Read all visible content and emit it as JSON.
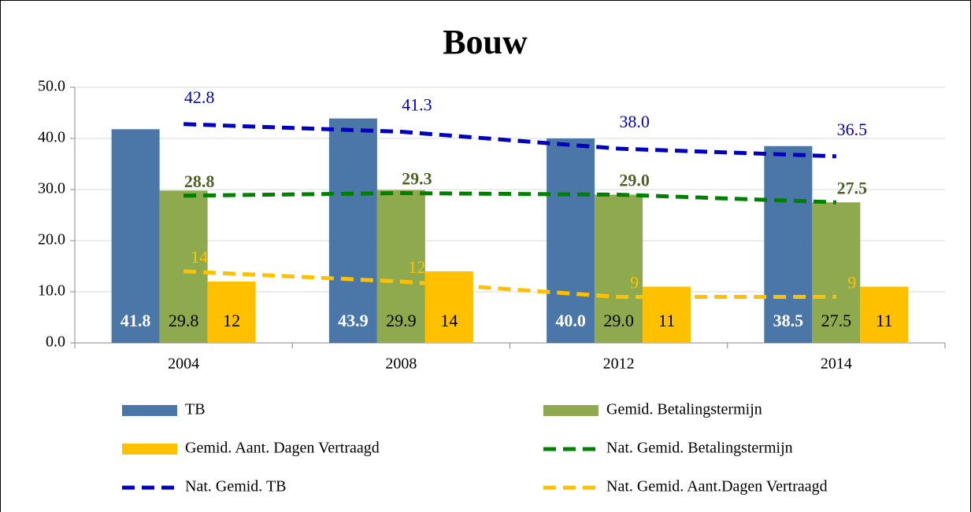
{
  "chart_data": {
    "type": "bar",
    "title": "Bouw",
    "categories": [
      "2004",
      "2008",
      "2012",
      "2014"
    ],
    "ylim": [
      0,
      50
    ],
    "yticks": [
      {
        "value": 0,
        "label": "0.0"
      },
      {
        "value": 10,
        "label": "10.0"
      },
      {
        "value": 20,
        "label": "20.0"
      },
      {
        "value": 30,
        "label": "30.0"
      },
      {
        "value": 40,
        "label": "40.0"
      },
      {
        "value": 50,
        "label": "50.0"
      }
    ],
    "grid": true,
    "series": [
      {
        "name": "TB",
        "type": "bar",
        "color": "#4a76a8",
        "label_color": "#ffffff",
        "values": [
          41.8,
          43.9,
          40,
          38.5
        ],
        "value_labels": [
          "41.8",
          "43.9",
          "40.0",
          "38.5"
        ]
      },
      {
        "name": "Gemid. Betalingstermijn",
        "type": "bar",
        "color": "#8faa4e",
        "label_color": "#000000",
        "values": [
          29.8,
          29.9,
          29,
          27.5
        ],
        "value_labels": [
          "29.8",
          "29.9",
          "29.0",
          "27.5"
        ]
      },
      {
        "name": "Gemid. Aant. Dagen Vertraagd",
        "type": "bar",
        "color": "#ffc000",
        "label_color": "#000000",
        "values": [
          12,
          14,
          11,
          11
        ]
      },
      {
        "name": "Nat. Gemid. Betalingstermijn",
        "type": "line",
        "color": "#008000",
        "label_color": "#4f6228",
        "values": [
          28.8,
          29.3,
          29,
          27.5
        ],
        "value_labels": [
          "28.8",
          "29.3",
          "29.0",
          "27.5"
        ]
      },
      {
        "name": "Nat. Gemid. TB",
        "type": "line",
        "color": "#0000c0",
        "label_color": "#0000c0",
        "values": [
          42.8,
          41.3,
          38,
          36.5
        ],
        "value_labels": [
          "42.8",
          "41.3",
          "38.0",
          "36.5"
        ]
      },
      {
        "name": "Nat. Gemid. Aant.Dagen Vertraagd",
        "type": "line",
        "color": "#ffc000",
        "label_color": "#ffc000",
        "values": [
          14,
          12,
          9,
          9
        ]
      }
    ]
  }
}
